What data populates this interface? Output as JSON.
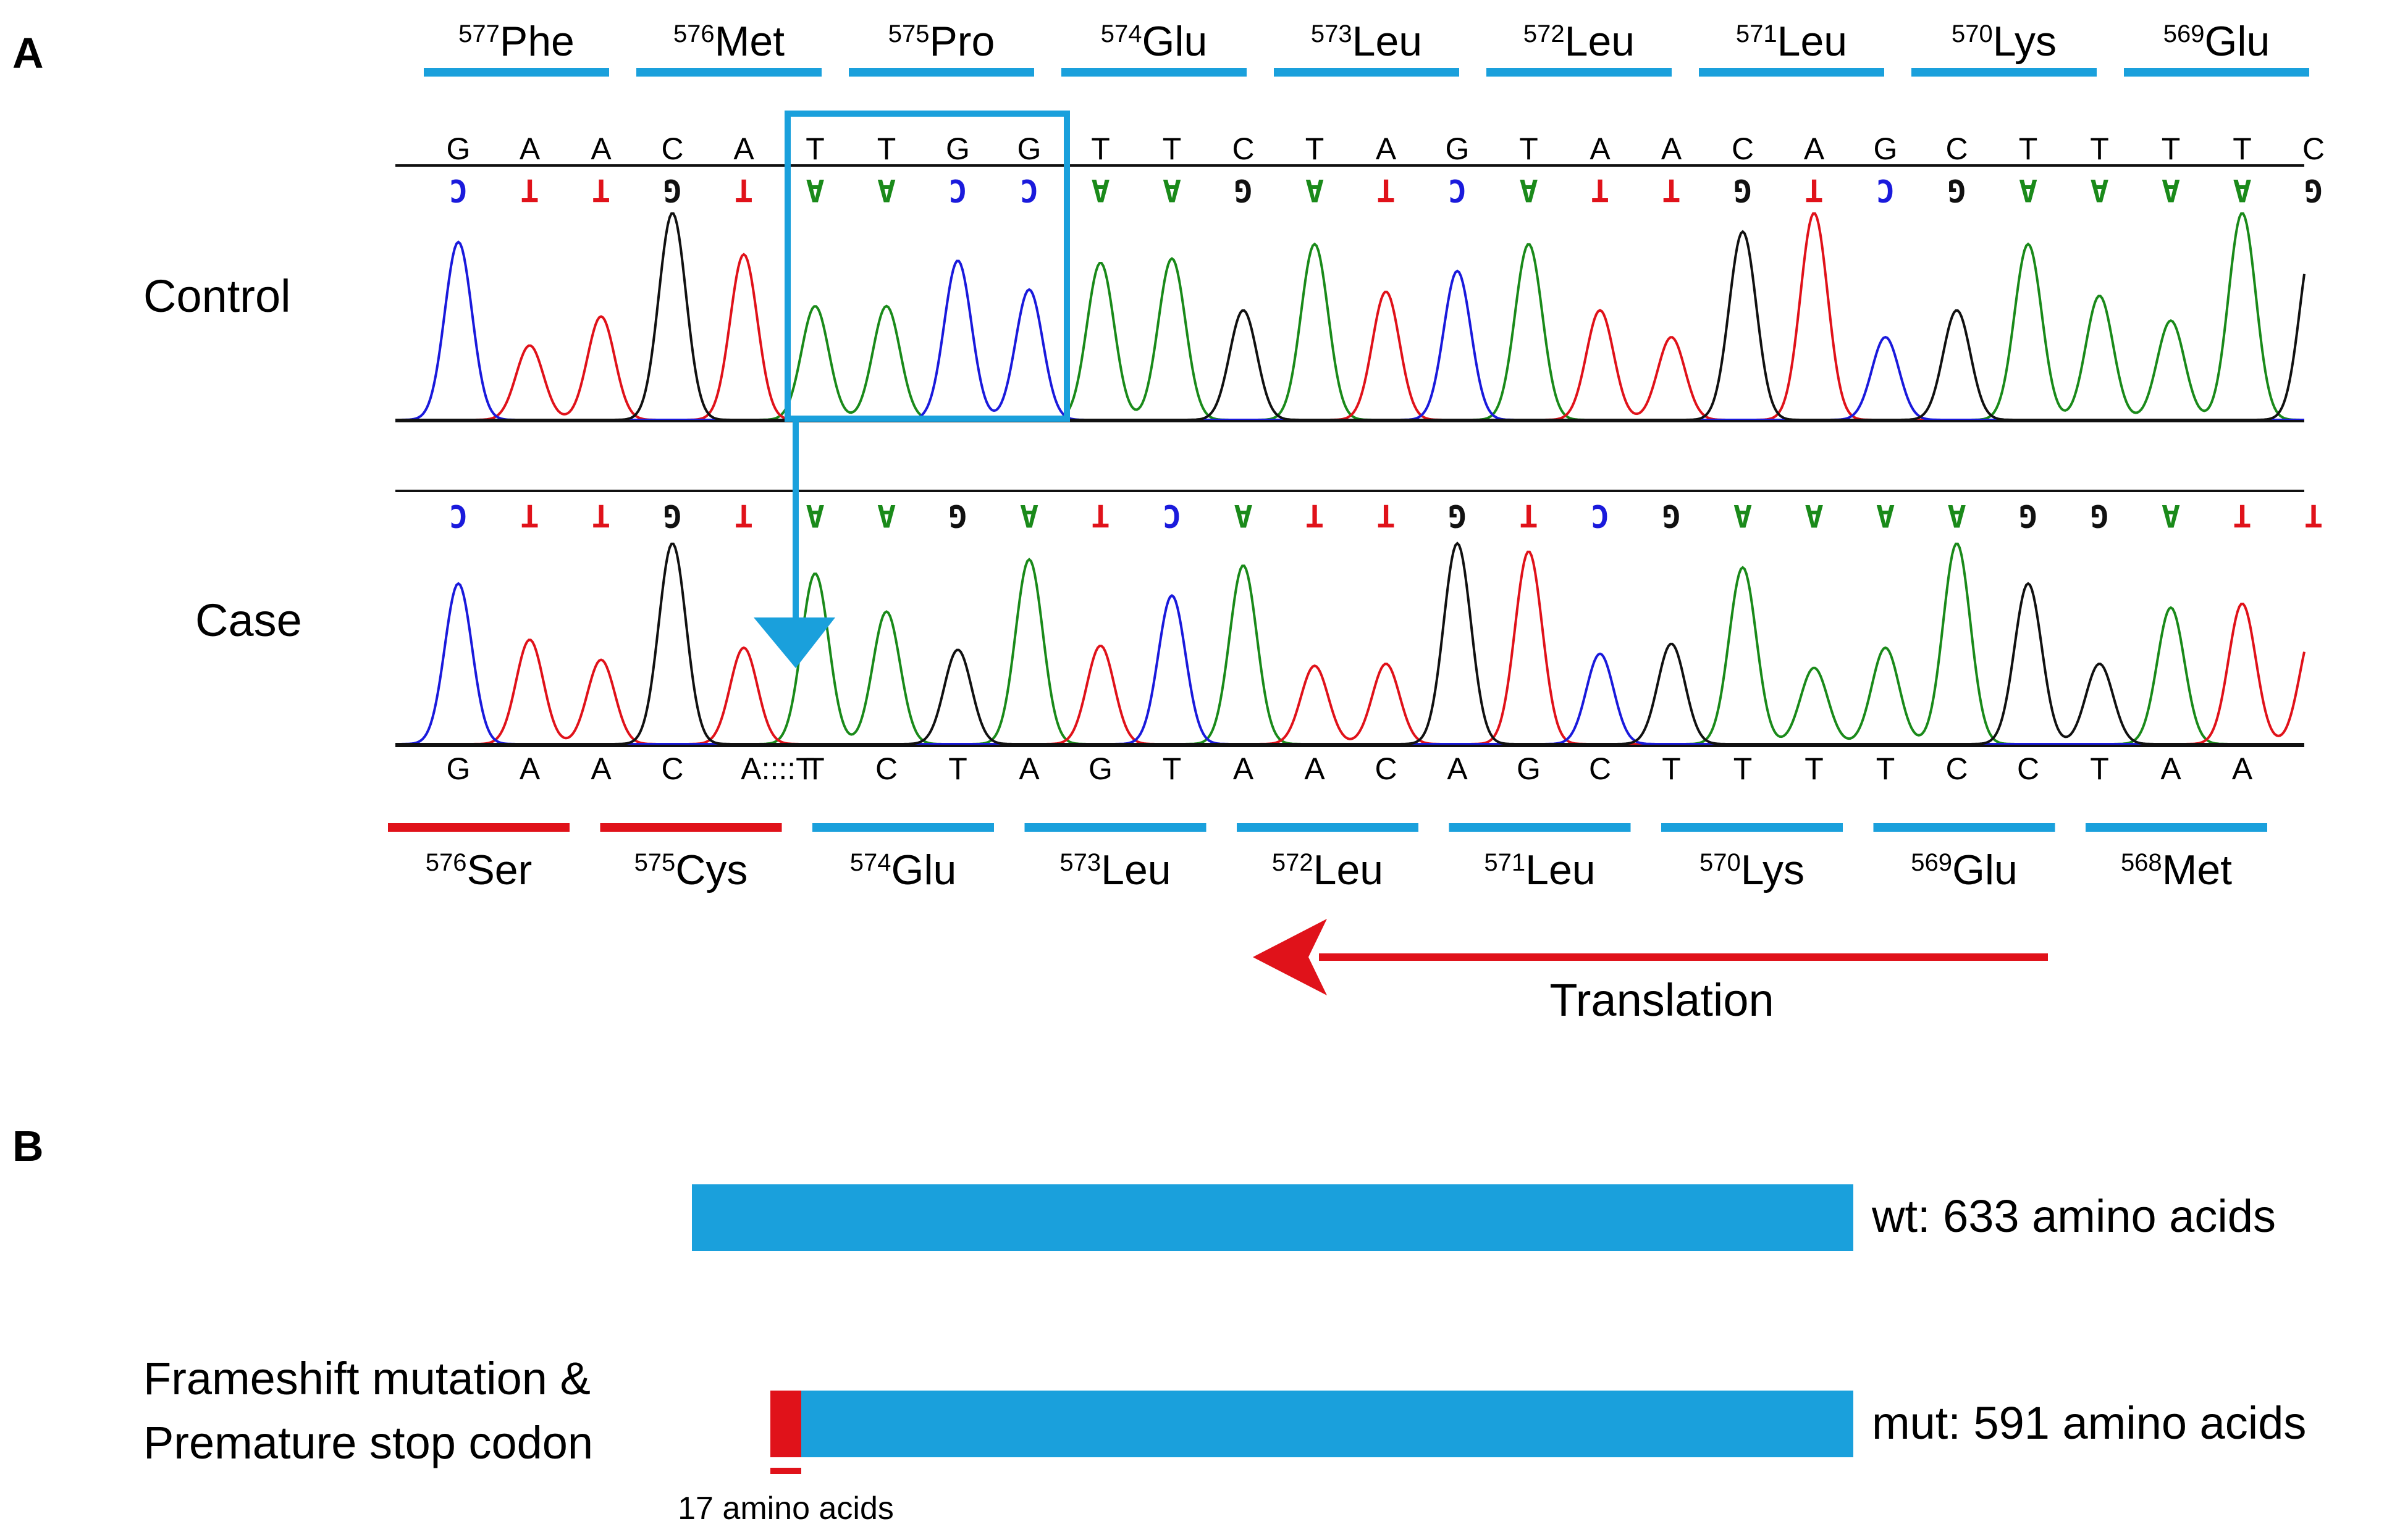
{
  "panels": {
    "a": "A",
    "b": "B"
  },
  "colors": {
    "accent_blue": "#1aa0dc",
    "accent_red": "#e0121a",
    "base_A": "#1a8a1a",
    "base_T": "#e0121a",
    "base_C": "#1a1adc",
    "base_G": "#111111"
  },
  "control": {
    "label": "Control",
    "codons": [
      {
        "num": "577",
        "aa": "Phe"
      },
      {
        "num": "576",
        "aa": "Met"
      },
      {
        "num": "575",
        "aa": "Pro"
      },
      {
        "num": "574",
        "aa": "Glu"
      },
      {
        "num": "573",
        "aa": "Leu"
      },
      {
        "num": "572",
        "aa": "Leu"
      },
      {
        "num": "571",
        "aa": "Leu"
      },
      {
        "num": "570",
        "aa": "Lys"
      },
      {
        "num": "569",
        "aa": "Glu"
      }
    ],
    "sequence": [
      "G",
      "A",
      "A",
      "C",
      "A",
      "T",
      "T",
      "G",
      "G",
      "T",
      "T",
      "C",
      "T",
      "A",
      "G",
      "T",
      "A",
      "A",
      "C",
      "A",
      "G",
      "C",
      "T",
      "T",
      "T",
      "T",
      "C"
    ],
    "called_bases": [
      "C",
      "T",
      "T",
      "G",
      "T",
      "A",
      "A",
      "C",
      "C",
      "A",
      "A",
      "G",
      "A",
      "T",
      "C",
      "A",
      "T",
      "T",
      "G",
      "T",
      "C",
      "G",
      "A",
      "A",
      "A",
      "A",
      "G"
    ]
  },
  "case": {
    "label": "Case",
    "called_bases": [
      "C",
      "T",
      "T",
      "G",
      "T",
      "A",
      "A",
      "G",
      "A",
      "T",
      "C",
      "A",
      "T",
      "T",
      "G",
      "T",
      "C",
      "G",
      "A",
      "A",
      "A",
      "A",
      "G",
      "G",
      "A",
      "T",
      "T"
    ],
    "sequence": [
      "G",
      "A",
      "A",
      "C",
      "A::::T",
      "T",
      "C",
      "T",
      "A",
      "G",
      "T",
      "A",
      "A",
      "C",
      "A",
      "G",
      "C",
      "T",
      "T",
      "T",
      "T",
      "C",
      "C",
      "T",
      "A",
      "A"
    ],
    "codons": [
      {
        "num": "576",
        "aa": "Ser",
        "mutant": true
      },
      {
        "num": "575",
        "aa": "Cys",
        "mutant": true
      },
      {
        "num": "574",
        "aa": "Glu",
        "mutant": false
      },
      {
        "num": "573",
        "aa": "Leu",
        "mutant": false
      },
      {
        "num": "572",
        "aa": "Leu",
        "mutant": false
      },
      {
        "num": "571",
        "aa": "Leu",
        "mutant": false
      },
      {
        "num": "570",
        "aa": "Lys",
        "mutant": false
      },
      {
        "num": "569",
        "aa": "Glu",
        "mutant": false
      },
      {
        "num": "568",
        "aa": "Met",
        "mutant": false
      }
    ]
  },
  "translation_label": "Translation",
  "protein": {
    "wt_label": "wt: 633 amino acids",
    "wt_length": 633,
    "mut_label": "mut: 591 amino acids",
    "mut_length": 591,
    "frameshift_amino_acids": 17,
    "annotation_line1": "Frameshift mutation &",
    "annotation_line2": "Premature stop codon",
    "frameshift_label": "17 amino acids"
  }
}
